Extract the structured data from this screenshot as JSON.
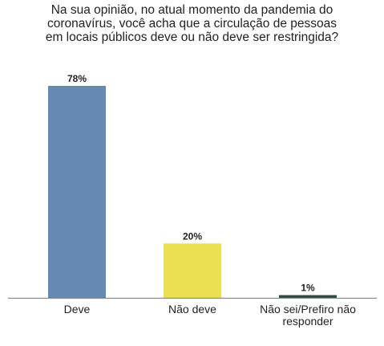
{
  "chart_data": {
    "type": "bar",
    "title_lines": [
      "Na sua opinião, no atual momento da pandemia do",
      "coronavírus, você acha que a circulação de pessoas",
      "em locais públicos deve ou não deve ser restringida?"
    ],
    "categories": [
      [
        "Deve"
      ],
      [
        "Não deve"
      ],
      [
        "Não sei/Prefiro não",
        "responder"
      ]
    ],
    "values": [
      78,
      20,
      1
    ],
    "value_labels": [
      "78%",
      "20%",
      "1%"
    ],
    "colors": [
      "#6689b4",
      "#ebe050",
      "#2f4a3e"
    ],
    "xlabel": "",
    "ylabel": "",
    "ylim": [
      0,
      78
    ],
    "grid": false,
    "legend": "none"
  }
}
